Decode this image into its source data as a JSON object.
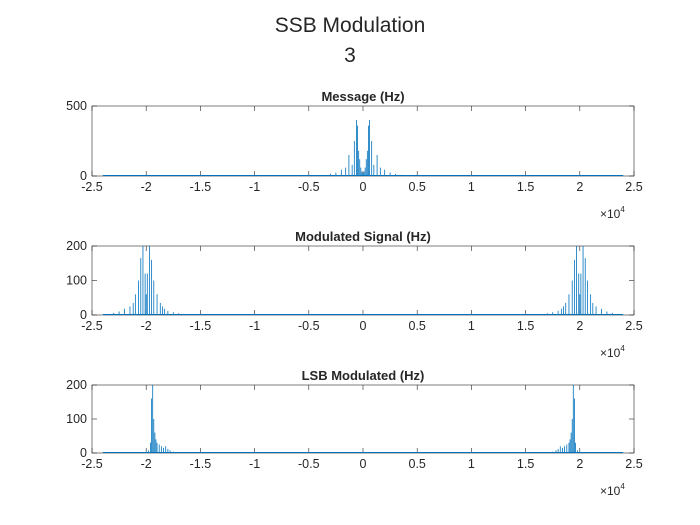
{
  "figure": {
    "title": "SSB Modulation",
    "subtitle": "3"
  },
  "colors": {
    "series": "#0072BD",
    "axis": "#262626",
    "background": "#ffffff"
  },
  "chart_data": [
    {
      "type": "line",
      "title": "Message (Hz)",
      "xlim": [
        -25000,
        25000
      ],
      "ylim": [
        0,
        500
      ],
      "x_ticks": [
        -25000,
        -20000,
        -15000,
        -10000,
        -5000,
        0,
        5000,
        10000,
        15000,
        20000,
        25000
      ],
      "x_tick_labels": [
        "-2.5",
        "-2",
        "-1.5",
        "-1",
        "-0.5",
        "0",
        "0.5",
        "1",
        "1.5",
        "2",
        "2.5"
      ],
      "x_exponent": "4",
      "y_ticks": [
        0,
        500
      ],
      "y_tick_labels": [
        "0",
        "500"
      ],
      "x_data_range": [
        -24000,
        24000
      ],
      "series": [
        {
          "x": [
            -4000,
            -3500,
            -3000,
            -2500,
            -2000,
            -1600,
            -1300,
            -1000,
            -800,
            -600,
            -500,
            -400,
            -300,
            -200,
            -100,
            0,
            100,
            200,
            300,
            400,
            500,
            600,
            800,
            1000,
            1300,
            1600,
            2000,
            2500,
            3000,
            3500,
            4000
          ],
          "y": [
            5,
            8,
            15,
            25,
            45,
            60,
            150,
            80,
            250,
            400,
            360,
            180,
            120,
            60,
            30,
            20,
            30,
            60,
            120,
            180,
            360,
            400,
            250,
            80,
            150,
            60,
            45,
            25,
            15,
            8,
            5
          ]
        }
      ]
    },
    {
      "type": "line",
      "title": "Modulated Signal (Hz)",
      "xlim": [
        -25000,
        25000
      ],
      "ylim": [
        0,
        200
      ],
      "x_ticks": [
        -25000,
        -20000,
        -15000,
        -10000,
        -5000,
        0,
        5000,
        10000,
        15000,
        20000,
        25000
      ],
      "x_tick_labels": [
        "-2.5",
        "-2",
        "-1.5",
        "-1",
        "-0.5",
        "0",
        "0.5",
        "1",
        "1.5",
        "2",
        "2.5"
      ],
      "x_exponent": "4",
      "y_ticks": [
        0,
        100,
        200
      ],
      "y_tick_labels": [
        "0",
        "100",
        "200"
      ],
      "x_data_range": [
        -24000,
        24000
      ],
      "series": [
        {
          "x": [
            -23500,
            -23000,
            -22500,
            -22000,
            -21500,
            -21200,
            -21000,
            -20700,
            -20500,
            -20300,
            -20100,
            -20000,
            -19900,
            -19700,
            -19500,
            -19300,
            -19000,
            -18700,
            -18500,
            -18300,
            -18000,
            -17500,
            -17000,
            -16500,
            16500,
            17000,
            17500,
            18000,
            18300,
            18500,
            18700,
            19000,
            19300,
            19500,
            19700,
            19900,
            20000,
            20100,
            20300,
            20500,
            20700,
            21000,
            21200,
            21500,
            22000,
            22500,
            23000,
            23500
          ],
          "y": [
            3,
            6,
            10,
            18,
            25,
            35,
            60,
            100,
            165,
            200,
            120,
            60,
            120,
            200,
            160,
            100,
            60,
            35,
            25,
            18,
            12,
            8,
            5,
            3,
            3,
            5,
            8,
            12,
            18,
            25,
            35,
            60,
            100,
            160,
            200,
            120,
            60,
            120,
            200,
            165,
            100,
            60,
            35,
            25,
            18,
            10,
            6,
            3
          ]
        }
      ]
    },
    {
      "type": "line",
      "title": "LSB Modulated (Hz)",
      "xlim": [
        -25000,
        25000
      ],
      "ylim": [
        0,
        200
      ],
      "x_ticks": [
        -25000,
        -20000,
        -15000,
        -10000,
        -5000,
        0,
        5000,
        10000,
        15000,
        20000,
        25000
      ],
      "x_tick_labels": [
        "-2.5",
        "-2",
        "-1.5",
        "-1",
        "-0.5",
        "0",
        "0.5",
        "1",
        "1.5",
        "2",
        "2.5"
      ],
      "x_exponent": "4",
      "y_ticks": [
        0,
        100,
        200
      ],
      "y_tick_labels": [
        "0",
        "100",
        "200"
      ],
      "x_data_range": [
        -24000,
        24000
      ],
      "series": [
        {
          "x": [
            -20000,
            -19800,
            -19600,
            -19500,
            -19400,
            -19300,
            -19200,
            -19100,
            -19000,
            -18800,
            -18600,
            -18400,
            -18200,
            -18000,
            -17800,
            -17500,
            17500,
            17800,
            18000,
            18200,
            18400,
            18600,
            18800,
            19000,
            19100,
            19200,
            19300,
            19400,
            19500,
            19600,
            19800,
            20000
          ],
          "y": [
            4,
            8,
            30,
            160,
            200,
            100,
            60,
            40,
            30,
            25,
            20,
            15,
            20,
            12,
            8,
            4,
            4,
            8,
            12,
            20,
            15,
            20,
            25,
            30,
            40,
            60,
            100,
            200,
            160,
            30,
            8,
            4
          ]
        }
      ]
    }
  ]
}
